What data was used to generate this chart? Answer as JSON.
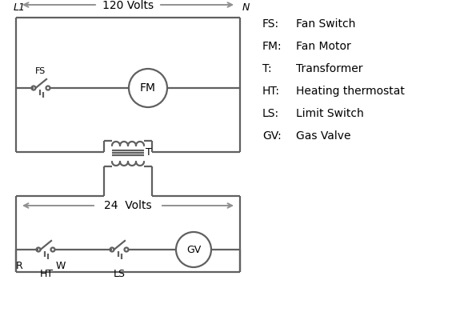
{
  "bg_color": "#ffffff",
  "line_color": "#606060",
  "arrow_color": "#909090",
  "text_color": "#000000",
  "legend_items": [
    [
      "FS:",
      "Fan Switch"
    ],
    [
      "FM:",
      "Fan Motor"
    ],
    [
      "T:",
      "Transformer"
    ],
    [
      "HT:",
      "Heating thermostat"
    ],
    [
      "LS:",
      "Limit Switch"
    ],
    [
      "GV:",
      "Gas Valve"
    ]
  ],
  "L1_label": "L1",
  "N_label": "N",
  "volts120_label": "120 Volts",
  "volts24_label": "24  Volts",
  "T_label": "T",
  "R_label": "R",
  "W_label": "W",
  "HT_label": "HT",
  "LS_label": "LS",
  "FS_label": "FS",
  "FM_label": "FM",
  "GV_label": "GV"
}
